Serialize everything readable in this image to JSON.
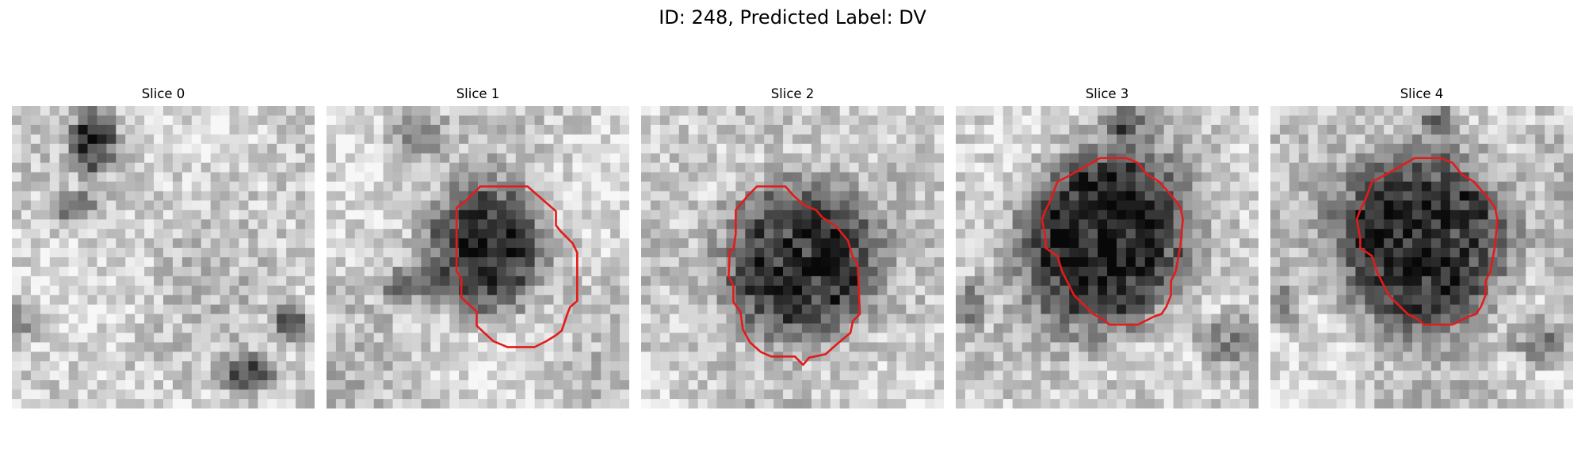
{
  "figure": {
    "title": "ID: 248, Predicted Label: DV"
  },
  "slices": [
    {
      "title": "Slice 0",
      "has_contour": false
    },
    {
      "title": "Slice 1",
      "has_contour": true
    },
    {
      "title": "Slice 2",
      "has_contour": true
    },
    {
      "title": "Slice 3",
      "has_contour": true
    },
    {
      "title": "Slice 4",
      "has_contour": true
    }
  ],
  "colors": {
    "contour": "#e31b1b",
    "background": "#ffffff"
  }
}
